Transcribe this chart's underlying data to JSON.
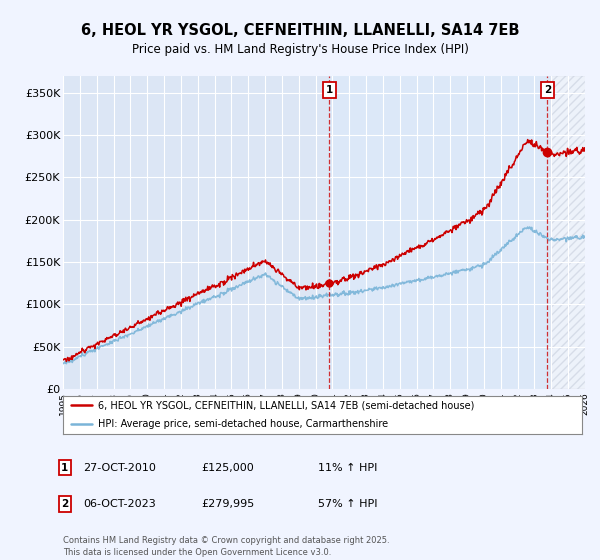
{
  "title_line1": "6, HEOL YR YSGOL, CEFNEITHIN, LLANELLI, SA14 7EB",
  "title_line2": "Price paid vs. HM Land Registry's House Price Index (HPI)",
  "background_color": "#f0f4ff",
  "plot_bg_color": "#dce6f5",
  "grid_color": "#ffffff",
  "ylim": [
    0,
    370000
  ],
  "yticks": [
    0,
    50000,
    100000,
    150000,
    200000,
    250000,
    300000,
    350000
  ],
  "ytick_labels": [
    "£0",
    "£50K",
    "£100K",
    "£150K",
    "£200K",
    "£250K",
    "£300K",
    "£350K"
  ],
  "sale1_date_num": 2010.82,
  "sale1_price": 125000,
  "sale2_date_num": 2023.76,
  "sale2_price": 279995,
  "hpi_line_color": "#7ab4d8",
  "price_line_color": "#cc0000",
  "legend_label1": "6, HEOL YR YSGOL, CEFNEITHIN, LLANELLI, SA14 7EB (semi-detached house)",
  "legend_label2": "HPI: Average price, semi-detached house, Carmarthenshire",
  "sale1_date_str": "27-OCT-2010",
  "sale1_amount": "£125,000",
  "sale1_hpi": "11% ↑ HPI",
  "sale2_date_str": "06-OCT-2023",
  "sale2_amount": "£279,995",
  "sale2_hpi": "57% ↑ HPI",
  "footer": "Contains HM Land Registry data © Crown copyright and database right 2025.\nThis data is licensed under the Open Government Licence v3.0.",
  "xmin": 1995,
  "xmax": 2026
}
